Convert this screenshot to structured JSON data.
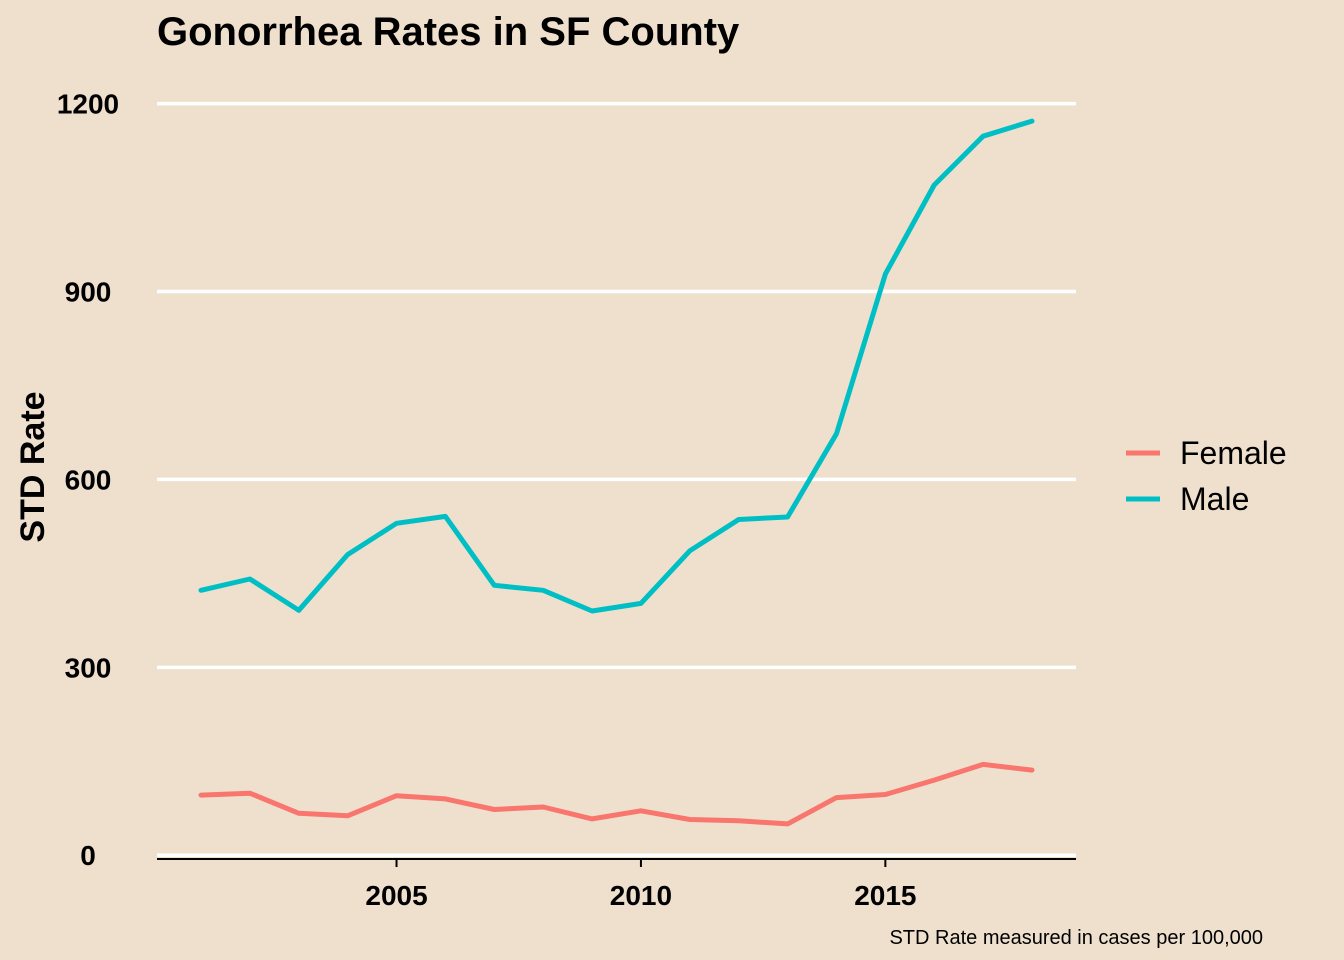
{
  "chart_data": {
    "type": "line",
    "title": "Gonorrhea Rates in SF County",
    "xlabel": "",
    "ylabel": "STD Rate",
    "caption": "STD Rate measured in cases per 100,000",
    "x": [
      2001,
      2002,
      2003,
      2004,
      2005,
      2006,
      2007,
      2008,
      2009,
      2010,
      2011,
      2012,
      2013,
      2014,
      2015,
      2016,
      2017,
      2018
    ],
    "series": [
      {
        "name": "Female",
        "color": "#f8766d",
        "values": [
          96,
          99,
          67,
          63,
          95,
          90,
          73,
          77,
          58,
          71,
          57,
          55,
          50,
          92,
          97,
          120,
          145,
          136
        ]
      },
      {
        "name": "Male",
        "color": "#00bfc4",
        "values": [
          423,
          441,
          391,
          480,
          530,
          541,
          431,
          423,
          390,
          402,
          486,
          536,
          540,
          673,
          928,
          1070,
          1148,
          1172
        ]
      }
    ],
    "xticks": [
      2005,
      2010,
      2015
    ],
    "xtick_labels": [
      "2005",
      "2010",
      "2015"
    ],
    "yticks": [
      0,
      300,
      600,
      900,
      1200
    ],
    "ytick_labels": [
      "0",
      "300",
      "600",
      "900",
      "1200"
    ],
    "xlim": [
      2000.1,
      2018.9
    ],
    "ylim": [
      -6,
      1260
    ],
    "grid": "horizontal",
    "legend": "right"
  }
}
